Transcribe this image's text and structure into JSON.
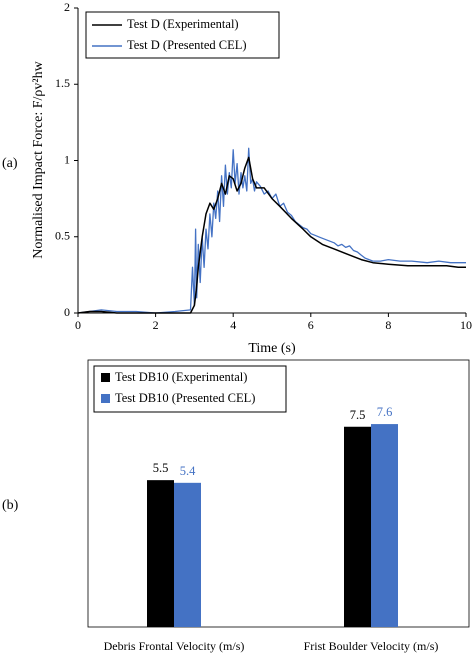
{
  "panels": {
    "a": "(a)",
    "b": "(b)"
  },
  "colors": {
    "experimental": "#000000",
    "presented": "#4472c4"
  },
  "chart_data": [
    {
      "type": "line",
      "title": "",
      "xlabel": "Time (s)",
      "ylabel": "Normalised Impact Force: F/ρv²hw",
      "xlim": [
        0,
        10
      ],
      "ylim": [
        0,
        2
      ],
      "xticks": [
        "0",
        "2",
        "4",
        "6",
        "8",
        "10"
      ],
      "yticks": [
        "0",
        "0.5",
        "1",
        "1.5",
        "2"
      ],
      "legend_position": "top-left",
      "grid": false,
      "series": [
        {
          "name": "Test D (Experimental)",
          "color": "#000000",
          "x": [
            0,
            0.3,
            0.6,
            1.0,
            1.5,
            2.0,
            2.5,
            2.9,
            3.0,
            3.05,
            3.1,
            3.2,
            3.3,
            3.4,
            3.5,
            3.6,
            3.7,
            3.8,
            3.9,
            4.0,
            4.1,
            4.2,
            4.3,
            4.4,
            4.5,
            4.6,
            4.8,
            5.0,
            5.2,
            5.5,
            5.8,
            6.0,
            6.3,
            6.6,
            7.0,
            7.3,
            7.6,
            8.0,
            8.5,
            9.0,
            9.5,
            9.8,
            10.0
          ],
          "y": [
            0.0,
            0.01,
            0.01,
            0.0,
            0.0,
            0.0,
            0.0,
            0.0,
            0.05,
            0.15,
            0.3,
            0.5,
            0.65,
            0.72,
            0.68,
            0.75,
            0.85,
            0.78,
            0.9,
            0.88,
            0.8,
            0.85,
            0.95,
            1.02,
            0.88,
            0.82,
            0.82,
            0.75,
            0.7,
            0.62,
            0.55,
            0.5,
            0.45,
            0.42,
            0.38,
            0.35,
            0.33,
            0.32,
            0.31,
            0.31,
            0.31,
            0.3,
            0.3
          ]
        },
        {
          "name": "Test D (Presented CEL)",
          "color": "#4472c4",
          "x": [
            0,
            0.3,
            0.6,
            1.0,
            1.5,
            2.0,
            2.5,
            2.9,
            2.95,
            3.0,
            3.03,
            3.06,
            3.1,
            3.15,
            3.2,
            3.25,
            3.3,
            3.35,
            3.4,
            3.45,
            3.5,
            3.55,
            3.6,
            3.65,
            3.7,
            3.75,
            3.8,
            3.85,
            3.9,
            3.95,
            4.0,
            4.05,
            4.1,
            4.15,
            4.2,
            4.25,
            4.3,
            4.35,
            4.4,
            4.45,
            4.5,
            4.55,
            4.6,
            4.7,
            4.8,
            4.9,
            5.0,
            5.1,
            5.2,
            5.3,
            5.4,
            5.5,
            5.6,
            5.7,
            5.8,
            5.9,
            6.0,
            6.1,
            6.2,
            6.3,
            6.4,
            6.5,
            6.6,
            6.7,
            6.8,
            6.9,
            7.0,
            7.1,
            7.2,
            7.3,
            7.4,
            7.5,
            7.6,
            7.8,
            8.0,
            8.3,
            8.6,
            9.0,
            9.3,
            9.6,
            10.0
          ],
          "y": [
            0.0,
            0.01,
            0.02,
            0.01,
            0.01,
            0.0,
            0.01,
            0.02,
            0.3,
            0.05,
            0.55,
            0.1,
            0.45,
            0.2,
            0.5,
            0.3,
            0.55,
            0.42,
            0.65,
            0.5,
            0.72,
            0.62,
            0.8,
            0.6,
            0.9,
            0.7,
            0.97,
            0.78,
            0.92,
            0.82,
            1.07,
            0.85,
            0.98,
            0.78,
            0.92,
            0.82,
            0.9,
            0.8,
            1.08,
            0.85,
            0.88,
            0.8,
            0.86,
            0.83,
            0.78,
            0.8,
            0.75,
            0.78,
            0.7,
            0.72,
            0.66,
            0.64,
            0.6,
            0.58,
            0.56,
            0.55,
            0.52,
            0.51,
            0.5,
            0.49,
            0.48,
            0.47,
            0.46,
            0.44,
            0.45,
            0.43,
            0.44,
            0.41,
            0.4,
            0.38,
            0.36,
            0.35,
            0.34,
            0.34,
            0.35,
            0.34,
            0.34,
            0.33,
            0.34,
            0.33,
            0.33
          ]
        }
      ]
    },
    {
      "type": "bar",
      "title": "",
      "categories": [
        "Debris Frontal Velocity (m/s)",
        "Frist Boulder Velocity (m/s)"
      ],
      "ylim": [
        0,
        10
      ],
      "legend_position": "top-left",
      "grid": false,
      "series": [
        {
          "name": "Test DB10 (Experimental)",
          "color": "#000000",
          "values": [
            5.5,
            7.5
          ],
          "labels": [
            "5.5",
            "7.5"
          ]
        },
        {
          "name": "Test DB10 (Presented CEL)",
          "color": "#4472c4",
          "values": [
            5.4,
            7.6
          ],
          "labels": [
            "5.4",
            "7.6"
          ]
        }
      ]
    }
  ]
}
